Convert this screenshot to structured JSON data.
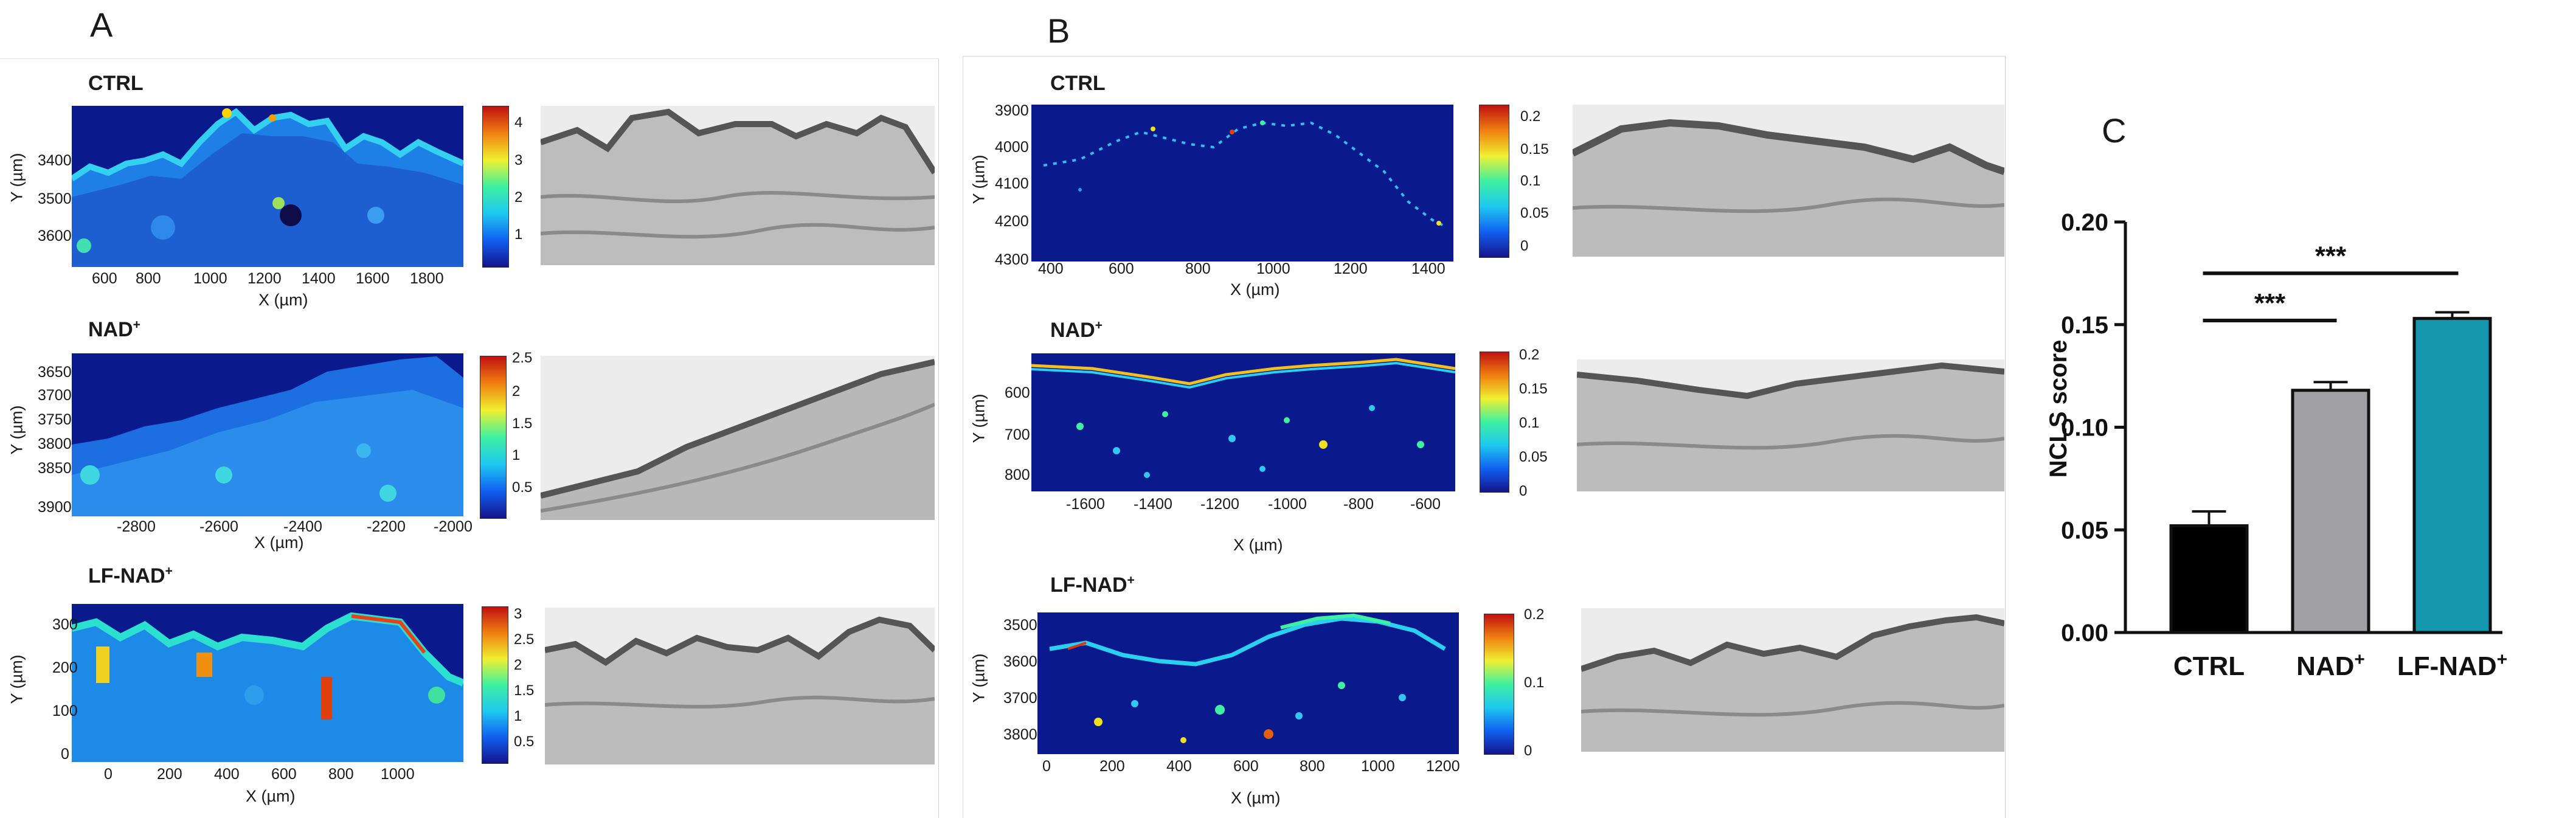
{
  "panels": {
    "A": {
      "letter": "A",
      "maps": [
        {
          "label": "CTRL",
          "label_sup": "",
          "yticks": [
            "3400",
            "3500",
            "3600"
          ],
          "xticks": [
            "600",
            "800",
            "1000",
            "1200",
            "1400",
            "1600",
            "1800"
          ],
          "ylabel": "Y (µm)",
          "xlabel": "X (µm)",
          "cbar_ticks": [
            "4",
            "3",
            "2",
            "1"
          ]
        },
        {
          "label": "NAD",
          "label_sup": "+",
          "yticks": [
            "3650",
            "3700",
            "3750",
            "3800",
            "3850",
            "3900"
          ],
          "xticks": [
            "-2800",
            "-2600",
            "-2400",
            "-2200",
            "-2000"
          ],
          "ylabel": "Y (µm)",
          "xlabel": "X (µm)",
          "cbar_ticks": [
            "2.5",
            "2",
            "1.5",
            "1",
            "0.5"
          ]
        },
        {
          "label": "LF-NAD",
          "label_sup": "+",
          "yticks": [
            "300",
            "200",
            "100",
            "0"
          ],
          "xticks": [
            "0",
            "200",
            "400",
            "600",
            "800",
            "1000"
          ],
          "ylabel": "Y (µm)",
          "xlabel": "X (µm)",
          "cbar_ticks": [
            "3",
            "2.5",
            "2",
            "1.5",
            "1",
            "0.5"
          ]
        }
      ]
    },
    "B": {
      "letter": "B",
      "maps": [
        {
          "label": "CTRL",
          "label_sup": "",
          "yticks": [
            "3900",
            "4000",
            "4100",
            "4200",
            "4300"
          ],
          "xticks": [
            "400",
            "600",
            "800",
            "1000",
            "1200",
            "1400"
          ],
          "ylabel": "Y (µm)",
          "xlabel": "X (µm)",
          "cbar_ticks": [
            "0.2",
            "0.15",
            "0.1",
            "0.05",
            "0"
          ]
        },
        {
          "label": "NAD",
          "label_sup": "+",
          "yticks": [
            "600",
            "700",
            "800"
          ],
          "xticks": [
            "-1600",
            "-1400",
            "-1200",
            "-1000",
            "-800",
            "-600"
          ],
          "ylabel": "Y (µm)",
          "xlabel": "X (µm)",
          "cbar_ticks": [
            "0.2",
            "0.15",
            "0.1",
            "0.05",
            "0"
          ]
        },
        {
          "label": "LF-NAD",
          "label_sup": "+",
          "yticks": [
            "3500",
            "3600",
            "3700",
            "3800"
          ],
          "xticks": [
            "0",
            "200",
            "400",
            "600",
            "800",
            "1000",
            "1200"
          ],
          "ylabel": "Y (µm)",
          "xlabel": "X (µm)",
          "cbar_ticks": [
            "0.2",
            "0.1",
            "0"
          ]
        }
      ]
    },
    "C": {
      "letter": "C"
    }
  },
  "colors": {
    "ctrl_bar": "#000000",
    "nad_bar": "#a0a0a4",
    "lfnad_bar": "#1597ad",
    "map_low": "#0a1a8c",
    "map_high": "#d81e05"
  },
  "chart_data": {
    "type": "bar",
    "categories": [
      "CTRL",
      "NAD+",
      "LF-NAD+"
    ],
    "category_sups": [
      "",
      "+",
      "+"
    ],
    "category_bases": [
      "CTRL",
      "NAD",
      "LF-NAD"
    ],
    "values": [
      0.052,
      0.118,
      0.153
    ],
    "errors": [
      0.007,
      0.004,
      0.003
    ],
    "ylabel": "NCLS score",
    "xlabel": "",
    "title": "",
    "ylim": [
      0,
      0.2
    ],
    "yticks": [
      "0.00",
      "0.05",
      "0.10",
      "0.15",
      "0.20"
    ],
    "significance": [
      {
        "from": "CTRL",
        "to": "NAD+",
        "label": "***"
      },
      {
        "from": "CTRL",
        "to": "LF-NAD+",
        "label": "***"
      }
    ]
  }
}
